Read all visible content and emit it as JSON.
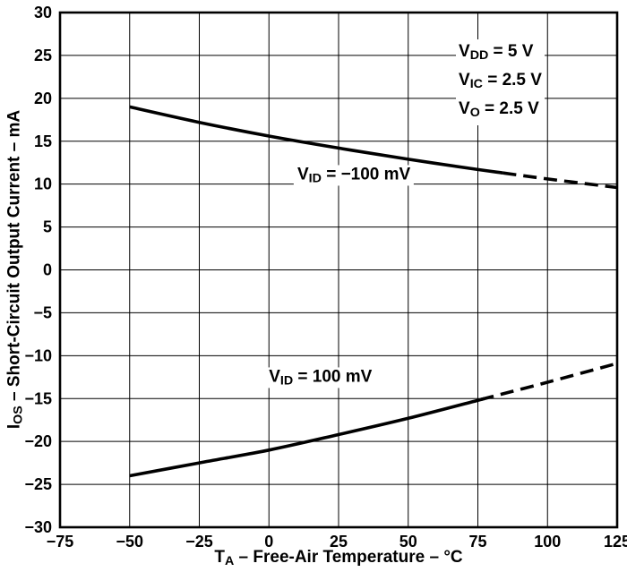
{
  "chart_data": {
    "type": "line",
    "title": "",
    "xlabel": "TA - Free-Air Temperature - °C",
    "ylabel": "IOS - Short-Circuit Output Current - mA",
    "xlabel_parts": {
      "pre": "T",
      "sub": "A",
      "post": " – Free-Air Temperature – °C"
    },
    "ylabel_parts": {
      "pre": "I",
      "sub": "OS",
      "post": " – Short-Circuit Output Current – mA"
    },
    "xlim": [
      -75,
      125
    ],
    "ylim": [
      -30,
      30
    ],
    "x_ticks": [
      -75,
      -50,
      -25,
      0,
      25,
      50,
      75,
      100,
      125
    ],
    "y_ticks": [
      -30,
      -25,
      -20,
      -15,
      -10,
      -5,
      0,
      5,
      10,
      15,
      20,
      25,
      30
    ],
    "grid": true,
    "line_color": "#000000",
    "background_color": "#ffffff",
    "series": [
      {
        "name": "VID = -100 mV",
        "label_parts": {
          "pre": "V",
          "sub": "ID",
          "post": " = −100 mV"
        },
        "x": [
          -50,
          -25,
          0,
          25,
          50,
          75,
          100,
          125
        ],
        "y": [
          19.0,
          17.2,
          15.6,
          14.2,
          12.9,
          11.7,
          10.6,
          9.6
        ],
        "dash_from_x": 84,
        "label_anchor": {
          "x": 30.5,
          "y": 11.0
        }
      },
      {
        "name": "VID = 100 mV",
        "label_parts": {
          "pre": "V",
          "sub": "ID",
          "post": " = 100 mV"
        },
        "x": [
          -50,
          -25,
          0,
          25,
          50,
          75,
          100,
          125
        ],
        "y": [
          -24.0,
          -22.5,
          -21.0,
          -19.2,
          -17.3,
          -15.2,
          -13.1,
          -10.9
        ],
        "dash_from_x": 76,
        "label_anchor": {
          "x": 18.5,
          "y": -12.6
        }
      }
    ],
    "annotations": [
      {
        "pre": "V",
        "sub": "DD",
        "post": " = 5 V"
      },
      {
        "pre": "V",
        "sub": "IC",
        "post": " = 2.5 V"
      },
      {
        "pre": "V",
        "sub": "O",
        "post": " = 2.5 V"
      }
    ]
  }
}
